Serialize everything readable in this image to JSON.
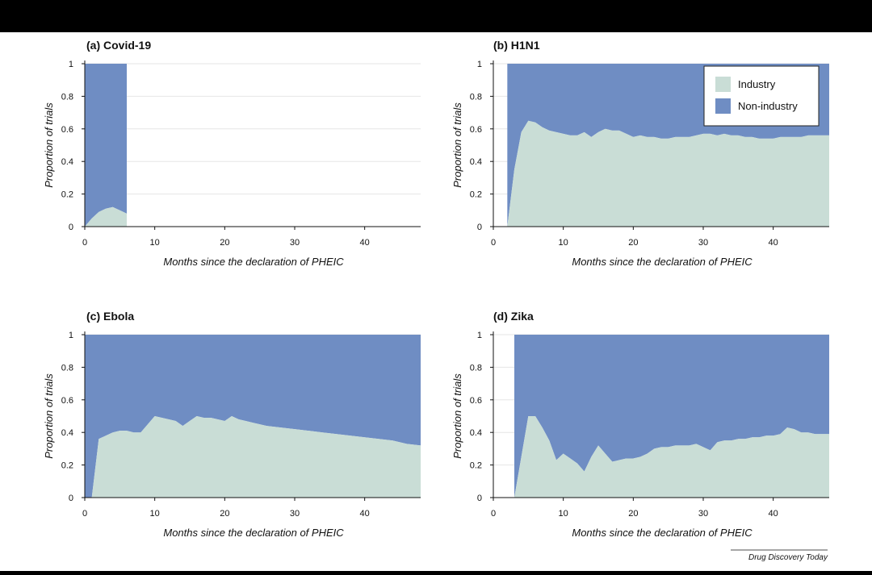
{
  "colors": {
    "industry": "#c9ddd6",
    "non_industry": "#6f8dc3",
    "grid": "#e6e6e6",
    "axis": "#111111"
  },
  "legend": {
    "items": [
      "Industry",
      "Non-industry"
    ],
    "placement": "top-right of panel (b)"
  },
  "credit": "Drug Discovery Today",
  "chart_data": [
    {
      "type": "area",
      "stacked": true,
      "panel": "a",
      "title": "(a) Covid-19",
      "xlabel": "Months since the declaration of PHEIC",
      "ylabel": "Proportion of trials",
      "xlim": [
        0,
        48
      ],
      "ylim": [
        0,
        1
      ],
      "xticks": [
        0,
        10,
        20,
        30,
        40
      ],
      "yticks": [
        0,
        0.2,
        0.4,
        0.6,
        0.8,
        1
      ],
      "grid": true,
      "start": 0,
      "end": 6,
      "series": [
        {
          "name": "Industry",
          "x": [
            0,
            1,
            2,
            3,
            4,
            5,
            6
          ],
          "y": [
            0,
            0.05,
            0.09,
            0.11,
            0.12,
            0.1,
            0.08
          ]
        },
        {
          "name": "Non-industry",
          "x": [
            0,
            1,
            2,
            3,
            4,
            5,
            6
          ],
          "y": [
            1,
            0.95,
            0.91,
            0.89,
            0.88,
            0.9,
            0.92
          ]
        }
      ]
    },
    {
      "type": "area",
      "stacked": true,
      "panel": "b",
      "title": "(b) H1N1",
      "xlabel": "Months since the declaration of PHEIC",
      "ylabel": "Proportion of trials",
      "xlim": [
        0,
        48
      ],
      "ylim": [
        0,
        1
      ],
      "xticks": [
        0,
        10,
        20,
        30,
        40
      ],
      "yticks": [
        0,
        0.2,
        0.4,
        0.6,
        0.8,
        1
      ],
      "grid": true,
      "start": 2,
      "end": 48,
      "series": [
        {
          "name": "Industry",
          "x": [
            2,
            3,
            4,
            5,
            6,
            7,
            8,
            9,
            10,
            11,
            12,
            13,
            14,
            15,
            16,
            17,
            18,
            19,
            20,
            21,
            22,
            23,
            24,
            25,
            26,
            27,
            28,
            29,
            30,
            31,
            32,
            33,
            34,
            35,
            36,
            37,
            38,
            39,
            40,
            41,
            42,
            43,
            44,
            45,
            46,
            47,
            48
          ],
          "y": [
            0,
            0.35,
            0.58,
            0.65,
            0.64,
            0.61,
            0.59,
            0.58,
            0.57,
            0.56,
            0.56,
            0.58,
            0.55,
            0.58,
            0.6,
            0.59,
            0.59,
            0.57,
            0.55,
            0.56,
            0.55,
            0.55,
            0.54,
            0.54,
            0.55,
            0.55,
            0.55,
            0.56,
            0.57,
            0.57,
            0.56,
            0.57,
            0.56,
            0.56,
            0.55,
            0.55,
            0.54,
            0.54,
            0.54,
            0.55,
            0.55,
            0.55,
            0.55,
            0.56,
            0.56,
            0.56,
            0.56
          ]
        },
        {
          "name": "Non-industry",
          "fill_to": 1
        }
      ]
    },
    {
      "type": "area",
      "stacked": true,
      "panel": "c",
      "title": "(c) Ebola",
      "xlabel": "Months since the declaration of PHEIC",
      "ylabel": "Proportion of trials",
      "xlim": [
        0,
        48
      ],
      "ylim": [
        0,
        1
      ],
      "xticks": [
        0,
        10,
        20,
        30,
        40
      ],
      "yticks": [
        0,
        0.2,
        0.4,
        0.6,
        0.8,
        1
      ],
      "grid": true,
      "start": 0,
      "end": 48,
      "series": [
        {
          "name": "Industry",
          "x": [
            0,
            1,
            2,
            3,
            4,
            5,
            6,
            7,
            8,
            9,
            10,
            11,
            12,
            13,
            14,
            15,
            16,
            17,
            18,
            19,
            20,
            21,
            22,
            23,
            24,
            26,
            28,
            30,
            32,
            34,
            36,
            38,
            40,
            42,
            44,
            46,
            48
          ],
          "y": [
            0,
            0,
            0.36,
            0.38,
            0.4,
            0.41,
            0.41,
            0.4,
            0.4,
            0.45,
            0.5,
            0.49,
            0.48,
            0.47,
            0.44,
            0.47,
            0.5,
            0.49,
            0.49,
            0.48,
            0.47,
            0.5,
            0.48,
            0.47,
            0.46,
            0.44,
            0.43,
            0.42,
            0.41,
            0.4,
            0.39,
            0.38,
            0.37,
            0.36,
            0.35,
            0.33,
            0.32
          ]
        },
        {
          "name": "Non-industry",
          "fill_to": 1
        }
      ]
    },
    {
      "type": "area",
      "stacked": true,
      "panel": "d",
      "title": "(d) Zika",
      "xlabel": "Months since the declaration of PHEIC",
      "ylabel": "Proportion of trials",
      "xlim": [
        0,
        48
      ],
      "ylim": [
        0,
        1
      ],
      "xticks": [
        0,
        10,
        20,
        30,
        40
      ],
      "yticks": [
        0,
        0.2,
        0.4,
        0.6,
        0.8,
        1
      ],
      "grid": true,
      "start": 3,
      "end": 48,
      "series": [
        {
          "name": "Industry",
          "x": [
            3,
            4,
            5,
            6,
            7,
            8,
            9,
            10,
            11,
            12,
            13,
            14,
            15,
            16,
            17,
            18,
            19,
            20,
            21,
            22,
            23,
            24,
            25,
            26,
            27,
            28,
            29,
            30,
            31,
            32,
            33,
            34,
            35,
            36,
            37,
            38,
            39,
            40,
            41,
            42,
            43,
            44,
            45,
            46,
            47,
            48
          ],
          "y": [
            0,
            0.25,
            0.5,
            0.5,
            0.43,
            0.35,
            0.23,
            0.27,
            0.24,
            0.21,
            0.16,
            0.25,
            0.32,
            0.27,
            0.22,
            0.23,
            0.24,
            0.24,
            0.25,
            0.27,
            0.3,
            0.31,
            0.31,
            0.32,
            0.32,
            0.32,
            0.33,
            0.31,
            0.29,
            0.34,
            0.35,
            0.35,
            0.36,
            0.36,
            0.37,
            0.37,
            0.38,
            0.38,
            0.39,
            0.43,
            0.42,
            0.4,
            0.4,
            0.39,
            0.39,
            0.39
          ]
        },
        {
          "name": "Non-industry",
          "fill_to": 1
        }
      ]
    }
  ]
}
